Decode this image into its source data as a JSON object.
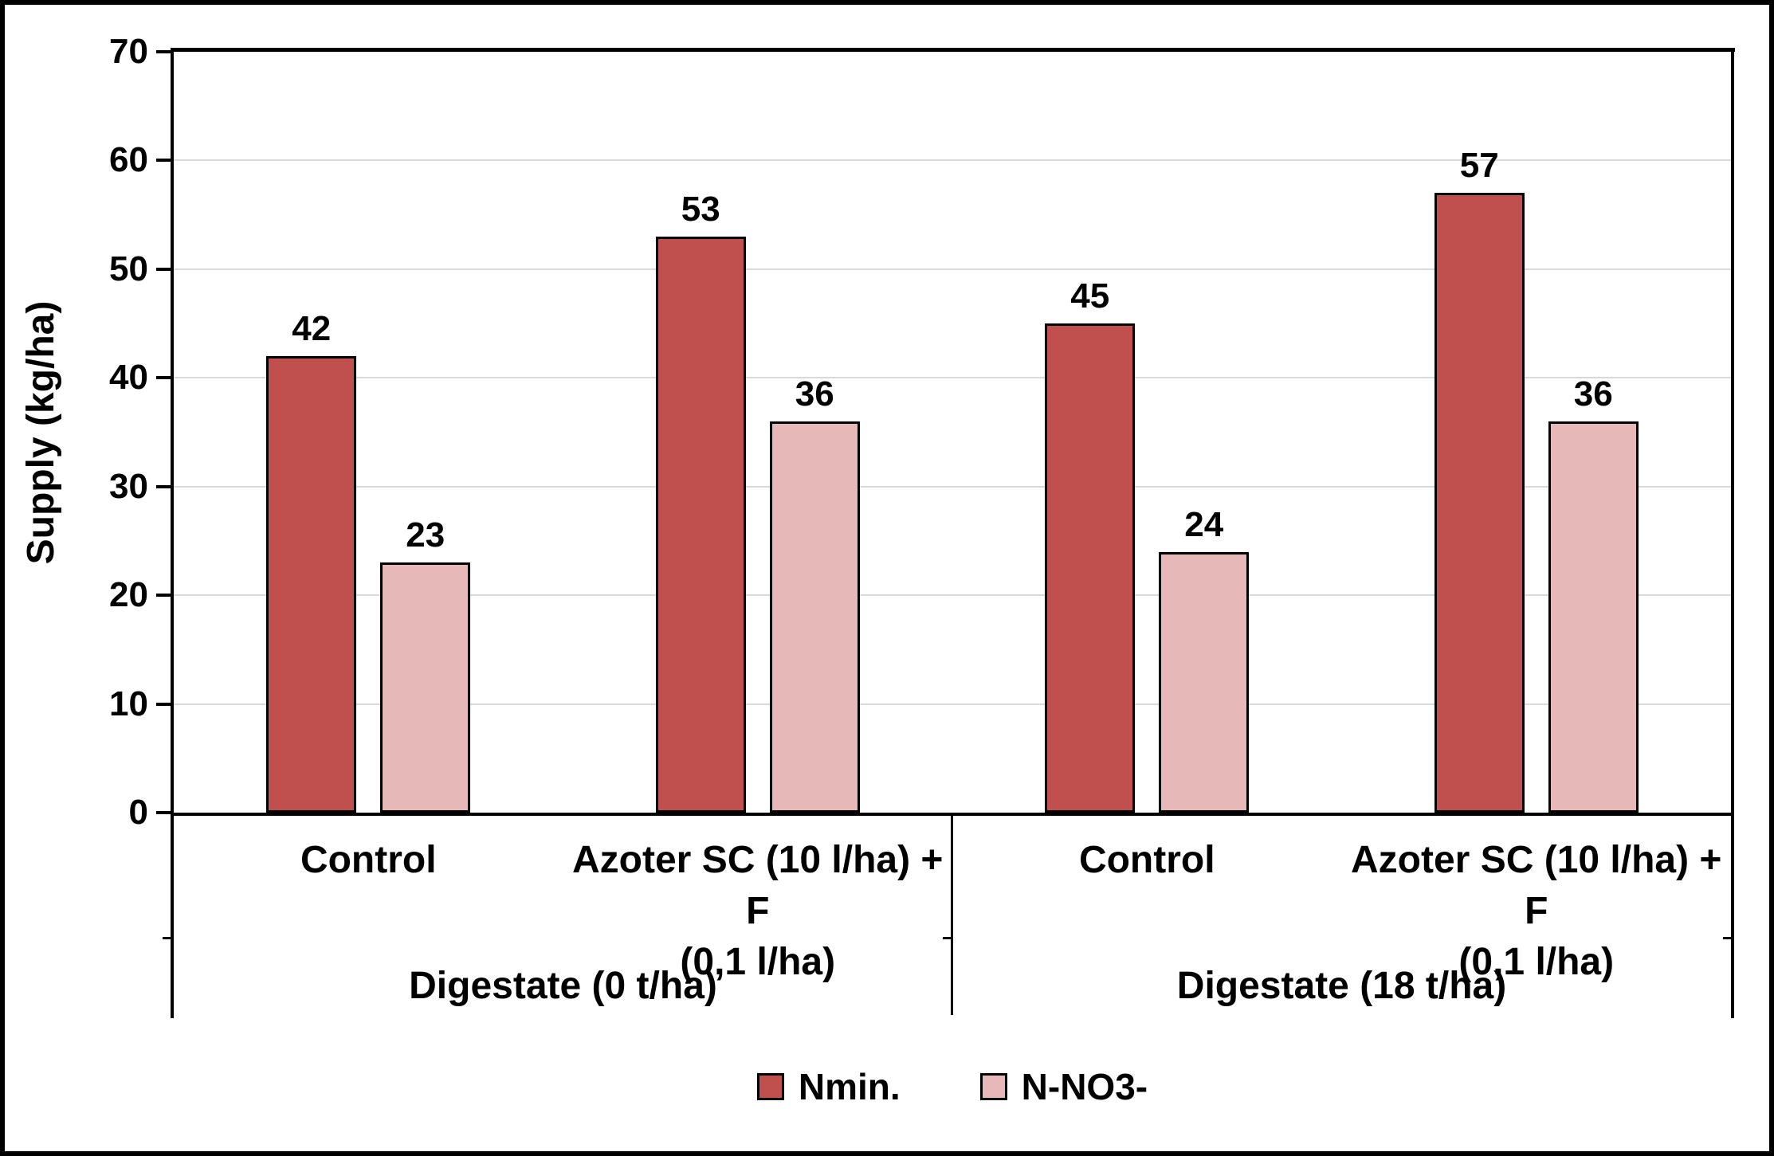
{
  "chart_data": {
    "type": "bar",
    "title": "",
    "ylabel": "Supply (kg/ha)",
    "xlabel": "",
    "ylim": [
      0,
      70
    ],
    "yticks": [
      0,
      10,
      20,
      30,
      40,
      50,
      60,
      70
    ],
    "grid": true,
    "legend_position": "bottom-center",
    "background_color": "#FFFFFF",
    "gridline_color": "#D9D9D9",
    "axis_color": "#000000",
    "groups": [
      {
        "label": "Digestate (0 t/ha)",
        "categories": [
          {
            "label": "Control",
            "label_lines": [
              "Control"
            ]
          },
          {
            "label": "Azoter SC (10 l/ha) + F (0,1 l/ha)",
            "label_lines": [
              "Azoter SC (10 l/ha) + F",
              "(0,1 l/ha)"
            ]
          }
        ]
      },
      {
        "label": "Digestate (18 t/ha)",
        "categories": [
          {
            "label": "Control",
            "label_lines": [
              "Control"
            ]
          },
          {
            "label": "Azoter SC (10 l/ha) + F (0,1 l/ha)",
            "label_lines": [
              "Azoter SC (10 l/ha) + F",
              "(0,1 l/ha)"
            ]
          }
        ]
      }
    ],
    "series": [
      {
        "name": "Nmin.",
        "color": "#C0504D",
        "values": [
          42,
          53,
          45,
          57
        ]
      },
      {
        "name": "N-NO3-",
        "color": "#E6B9B8",
        "values": [
          23,
          36,
          24,
          36
        ]
      }
    ]
  }
}
